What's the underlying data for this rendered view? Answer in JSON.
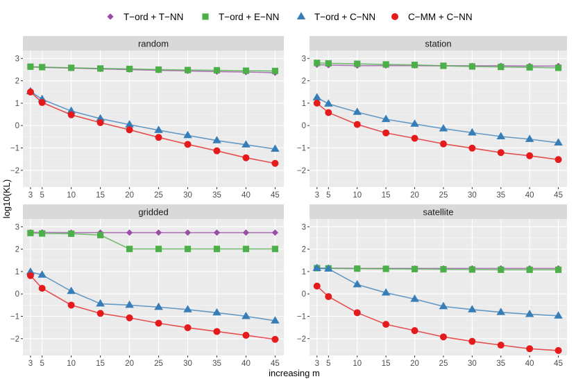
{
  "chart_data": {
    "type": "line",
    "xlabel": "increasing m",
    "ylabel": "log10(KL)",
    "x": [
      3,
      5,
      10,
      15,
      20,
      25,
      30,
      35,
      40,
      45
    ],
    "xticks": [
      3,
      5,
      10,
      15,
      20,
      25,
      30,
      35,
      40,
      45
    ],
    "yticks": [
      -2,
      -1,
      0,
      1,
      2,
      3
    ],
    "xlim": [
      1.7,
      46.5
    ],
    "ylim": [
      -2.75,
      3.35
    ],
    "legend": {
      "position": "top",
      "entries": [
        {
          "label": "T−ord + T−NN",
          "color": "#984EA3",
          "shape": "diamond"
        },
        {
          "label": "T−ord + E−NN",
          "color": "#4DAF4A",
          "shape": "square"
        },
        {
          "label": "T−ord + C−NN",
          "color": "#377EB8",
          "shape": "triangle"
        },
        {
          "label": "C−MM + C−NN",
          "color": "#E41A1C",
          "shape": "circle"
        }
      ]
    },
    "panels": [
      {
        "title": "random",
        "series": [
          {
            "name": "T−ord + T−NN",
            "values": [
              2.62,
              2.6,
              2.57,
              2.53,
              2.5,
              2.47,
              2.44,
              2.41,
              2.39,
              2.36
            ]
          },
          {
            "name": "T−ord + E−NN",
            "values": [
              2.63,
              2.61,
              2.58,
              2.55,
              2.53,
              2.5,
              2.48,
              2.47,
              2.45,
              2.44
            ]
          },
          {
            "name": "T−ord + C−NN",
            "values": [
              1.52,
              1.17,
              0.65,
              0.31,
              0.04,
              -0.21,
              -0.44,
              -0.67,
              -0.86,
              -1.05
            ]
          },
          {
            "name": "C−MM + C−NN",
            "values": [
              1.5,
              1.03,
              0.48,
              0.13,
              -0.19,
              -0.53,
              -0.84,
              -1.13,
              -1.44,
              -1.69
            ]
          }
        ]
      },
      {
        "title": "station",
        "series": [
          {
            "name": "T−ord + T−NN",
            "values": [
              2.72,
              2.7,
              2.68,
              2.68,
              2.68,
              2.67,
              2.67,
              2.67,
              2.66,
              2.66
            ]
          },
          {
            "name": "T−ord + E−NN",
            "values": [
              2.8,
              2.78,
              2.76,
              2.73,
              2.71,
              2.67,
              2.64,
              2.62,
              2.6,
              2.58
            ]
          },
          {
            "name": "T−ord + C−NN",
            "values": [
              1.25,
              0.97,
              0.6,
              0.28,
              0.07,
              -0.14,
              -0.32,
              -0.49,
              -0.61,
              -0.77
            ]
          },
          {
            "name": "C−MM + C−NN",
            "values": [
              1.0,
              0.58,
              0.05,
              -0.33,
              -0.57,
              -0.82,
              -1.01,
              -1.21,
              -1.35,
              -1.52
            ]
          }
        ]
      },
      {
        "title": "gridded",
        "series": [
          {
            "name": "T−ord + T−NN",
            "values": [
              2.75,
              2.75,
              2.74,
              2.74,
              2.74,
              2.74,
              2.74,
              2.74,
              2.74,
              2.74
            ]
          },
          {
            "name": "T−ord + E−NN",
            "values": [
              2.72,
              2.7,
              2.69,
              2.63,
              2.01,
              2.01,
              2.01,
              2.01,
              2.01,
              2.01
            ]
          },
          {
            "name": "T−ord + C−NN",
            "values": [
              0.98,
              0.85,
              0.12,
              -0.44,
              -0.5,
              -0.59,
              -0.7,
              -0.84,
              -1.0,
              -1.2
            ]
          },
          {
            "name": "C−MM + C−NN",
            "values": [
              0.82,
              0.25,
              -0.5,
              -0.87,
              -1.07,
              -1.31,
              -1.51,
              -1.68,
              -1.85,
              -2.03
            ]
          }
        ]
      },
      {
        "title": "satellite",
        "series": [
          {
            "name": "T−ord + T−NN",
            "values": [
              1.15,
              1.15,
              1.14,
              1.14,
              1.14,
              1.14,
              1.14,
              1.14,
              1.14,
              1.14
            ]
          },
          {
            "name": "T−ord + E−NN",
            "values": [
              1.15,
              1.14,
              1.13,
              1.12,
              1.11,
              1.1,
              1.09,
              1.08,
              1.08,
              1.08
            ]
          },
          {
            "name": "T−ord + C−NN",
            "values": [
              1.15,
              1.12,
              0.42,
              0.05,
              -0.23,
              -0.56,
              -0.7,
              -0.82,
              -0.91,
              -0.98
            ]
          },
          {
            "name": "C−MM + C−NN",
            "values": [
              0.35,
              -0.12,
              -0.84,
              -1.36,
              -1.64,
              -1.92,
              -2.12,
              -2.29,
              -2.45,
              -2.53
            ]
          }
        ]
      }
    ]
  }
}
